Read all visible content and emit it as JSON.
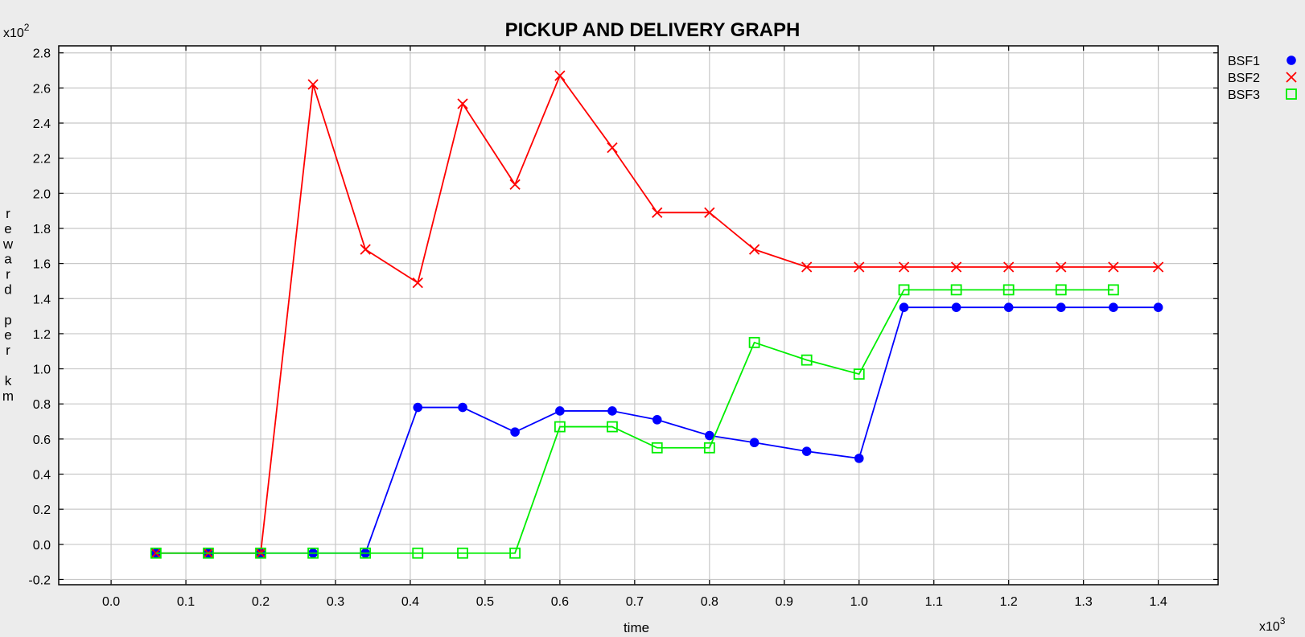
{
  "chart_data": {
    "type": "line",
    "title": "PICKUP AND DELIVERY GRAPH",
    "xlabel": "time",
    "ylabel": "reward per km",
    "x_multiplier": "x10",
    "x_exponent": "3",
    "y_multiplier": "x10",
    "y_exponent": "2",
    "xlim": [
      -0.07,
      1.48
    ],
    "ylim": [
      -0.23,
      2.84
    ],
    "x_ticks": [
      0.0,
      0.1,
      0.2,
      0.3,
      0.4,
      0.5,
      0.6,
      0.7,
      0.8,
      0.9,
      1.0,
      1.1,
      1.2,
      1.3,
      1.4
    ],
    "y_ticks": [
      -0.2,
      0.0,
      0.2,
      0.4,
      0.6,
      0.8,
      1.0,
      1.2,
      1.4,
      1.6,
      1.8,
      2.0,
      2.2,
      2.4,
      2.6,
      2.8
    ],
    "grid": true,
    "legend_position": "right-top",
    "series": [
      {
        "name": "BSF1",
        "color": "#0000ff",
        "marker": "circle",
        "x": [
          0.06,
          0.13,
          0.2,
          0.27,
          0.34,
          0.41,
          0.47,
          0.54,
          0.6,
          0.67,
          0.73,
          0.8,
          0.86,
          0.93,
          1.0,
          1.06,
          1.13,
          1.2,
          1.27,
          1.34,
          1.4
        ],
        "y": [
          -0.05,
          -0.05,
          -0.05,
          -0.05,
          -0.05,
          0.78,
          0.78,
          0.64,
          0.76,
          0.76,
          0.71,
          0.62,
          0.58,
          0.53,
          0.49,
          1.35,
          1.35,
          1.35,
          1.35,
          1.35,
          1.35
        ]
      },
      {
        "name": "BSF2",
        "color": "#ff0000",
        "marker": "x",
        "x": [
          0.06,
          0.13,
          0.2,
          0.27,
          0.34,
          0.41,
          0.47,
          0.54,
          0.6,
          0.67,
          0.73,
          0.8,
          0.86,
          0.93,
          1.0,
          1.06,
          1.13,
          1.2,
          1.27,
          1.34,
          1.4
        ],
        "y": [
          -0.05,
          -0.05,
          -0.05,
          2.62,
          1.68,
          1.49,
          2.51,
          2.05,
          2.67,
          2.26,
          1.89,
          1.89,
          1.68,
          1.58,
          1.58,
          1.58,
          1.58,
          1.58,
          1.58,
          1.58,
          1.58
        ]
      },
      {
        "name": "BSF3",
        "color": "#00ee00",
        "marker": "square",
        "x": [
          0.06,
          0.13,
          0.2,
          0.27,
          0.34,
          0.41,
          0.47,
          0.54,
          0.6,
          0.67,
          0.73,
          0.8,
          0.86,
          0.93,
          1.0,
          1.06,
          1.13,
          1.2,
          1.27,
          1.34
        ],
        "y": [
          -0.05,
          -0.05,
          -0.05,
          -0.05,
          -0.05,
          -0.05,
          -0.05,
          -0.05,
          0.67,
          0.67,
          0.55,
          0.55,
          1.15,
          1.05,
          0.97,
          1.45,
          1.45,
          1.45,
          1.45,
          1.45
        ]
      }
    ]
  }
}
